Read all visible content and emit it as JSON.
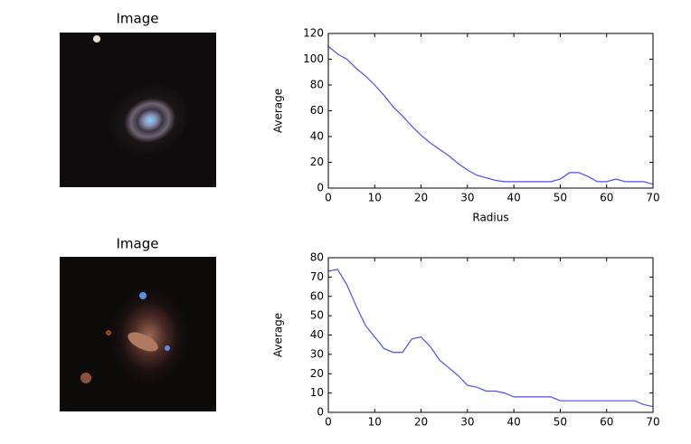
{
  "chart_data": [
    {
      "type": "image",
      "title": "Image"
    },
    {
      "type": "line",
      "xlabel": "Radius",
      "ylabel": "Average",
      "color": "#4d4dff",
      "x": [
        0,
        2,
        4,
        6,
        8,
        10,
        12,
        14,
        16,
        18,
        20,
        22,
        24,
        26,
        28,
        30,
        32,
        34,
        36,
        38,
        40,
        42,
        44,
        46,
        48,
        50,
        52,
        54,
        56,
        58,
        60,
        62,
        64,
        66,
        68,
        70
      ],
      "values": [
        110,
        104,
        100,
        93,
        87,
        80,
        72,
        63,
        56,
        48,
        41,
        35,
        30,
        25,
        19,
        14,
        10,
        8,
        6,
        5,
        5,
        5,
        5,
        5,
        5,
        7,
        12,
        12,
        9,
        5,
        5,
        7,
        5,
        5,
        5,
        3
      ],
      "xlim": [
        0,
        70
      ],
      "xticks": [
        0,
        10,
        20,
        30,
        40,
        50,
        60,
        70
      ],
      "ylim": [
        0,
        120
      ],
      "yticks": [
        0,
        20,
        40,
        60,
        80,
        100,
        120
      ]
    },
    {
      "type": "image",
      "title": "Image"
    },
    {
      "type": "line",
      "ylabel": "Average",
      "color": "#4d4dff",
      "x": [
        0,
        2,
        4,
        6,
        8,
        10,
        12,
        14,
        16,
        18,
        20,
        22,
        24,
        26,
        28,
        30,
        32,
        34,
        36,
        38,
        40,
        42,
        44,
        46,
        48,
        50,
        52,
        54,
        56,
        58,
        60,
        62,
        64,
        66,
        68,
        70
      ],
      "values": [
        73,
        74,
        66,
        55,
        45,
        39,
        33,
        31,
        31,
        38,
        39,
        34,
        27,
        23,
        19,
        14,
        13,
        11,
        11,
        10,
        8,
        8,
        8,
        8,
        8,
        6,
        6,
        6,
        6,
        6,
        6,
        6,
        6,
        6,
        4,
        3
      ],
      "xlim": [
        0,
        70
      ],
      "xticks": [
        0,
        10,
        20,
        30,
        40,
        50,
        60,
        70
      ],
      "ylim": [
        0,
        80
      ],
      "yticks": [
        0,
        10,
        20,
        30,
        40,
        50,
        60,
        70,
        80
      ]
    }
  ]
}
